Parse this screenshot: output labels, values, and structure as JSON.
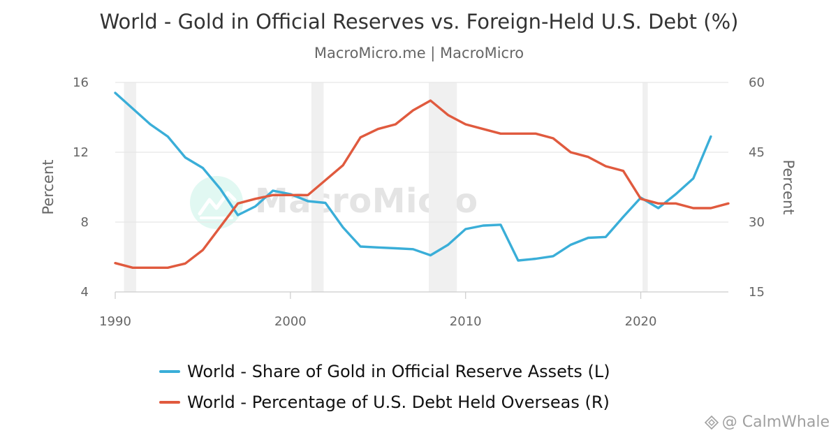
{
  "header": {
    "title": "World - Gold in Official Reserves vs. Foreign-Held U.S. Debt (%)",
    "subtitle": "MacroMicro.me | MacroMicro"
  },
  "watermark": {
    "brand": "MacroMicro"
  },
  "credit": {
    "text": "@ CalmWhale",
    "icon": "diamond-logo-icon"
  },
  "colors": {
    "blue": "#3aaed8",
    "red": "#e05a3e",
    "recession": "#f0f0f0"
  },
  "chart_data": {
    "type": "line",
    "title": "World - Gold in Official Reserves vs. Foreign-Held U.S. Debt (%)",
    "xlabel": "",
    "ylabel_left": "Percent",
    "ylabel_right": "Percent",
    "xlim": [
      1990,
      2025
    ],
    "ylim_left": [
      4,
      16
    ],
    "ylim_right": [
      15,
      60
    ],
    "xticks": [
      "1990",
      "2000",
      "2010",
      "2020"
    ],
    "yticks_left": [
      "4",
      "8",
      "12",
      "16"
    ],
    "yticks_right": [
      "15",
      "30",
      "45",
      "60"
    ],
    "recessions": [
      [
        1990.5,
        1991.2
      ],
      [
        2001.2,
        2001.9
      ],
      [
        2007.9,
        2009.5
      ],
      [
        2020.1,
        2020.4
      ]
    ],
    "series": [
      {
        "name": "World - Share of Gold in Official Reserve Assets (L)",
        "axis": "left",
        "color": "#3aaed8",
        "x": [
          1990,
          1991,
          1992,
          1993,
          1994,
          1995,
          1996,
          1997,
          1998,
          1999,
          2000,
          2001,
          2002,
          2003,
          2004,
          2005,
          2006,
          2007,
          2008,
          2009,
          2010,
          2011,
          2012,
          2013,
          2014,
          2015,
          2016,
          2017,
          2018,
          2019,
          2020,
          2021,
          2022,
          2023,
          2024
        ],
        "values": [
          15.4,
          14.5,
          13.6,
          12.9,
          11.7,
          11.1,
          9.9,
          8.4,
          8.9,
          9.8,
          9.6,
          9.2,
          9.1,
          7.7,
          6.6,
          6.55,
          6.5,
          6.45,
          6.1,
          6.7,
          7.6,
          7.8,
          7.85,
          5.8,
          5.9,
          6.05,
          6.7,
          7.1,
          7.15,
          8.3,
          9.4,
          8.8,
          9.6,
          10.5,
          12.9
        ]
      },
      {
        "name": "World - Percentage of U.S. Debt Held Overseas (R)",
        "axis": "right",
        "color": "#e05a3e",
        "x": [
          1990,
          1991,
          1992,
          1993,
          1994,
          1995,
          1996,
          1997,
          1998,
          1999,
          2000,
          2001,
          2002,
          2003,
          2004,
          2005,
          2006,
          2007,
          2008,
          2009,
          2010,
          2011,
          2012,
          2013,
          2014,
          2015,
          2016,
          2017,
          2018,
          2019,
          2020,
          2021,
          2022,
          2023,
          2024,
          2025
        ],
        "values": [
          21.2,
          20.2,
          20.2,
          20.2,
          21.1,
          24.0,
          29.0,
          34.0,
          35.0,
          35.8,
          35.8,
          35.8,
          39.0,
          42.2,
          48.2,
          50.0,
          51.0,
          54.0,
          56.1,
          53.0,
          51.0,
          50.0,
          49.0,
          49.0,
          49.0,
          48.0,
          45.0,
          44.0,
          42.0,
          41.0,
          35.0,
          34.0,
          34.0,
          33.0,
          33.0,
          34.0
        ]
      }
    ]
  }
}
